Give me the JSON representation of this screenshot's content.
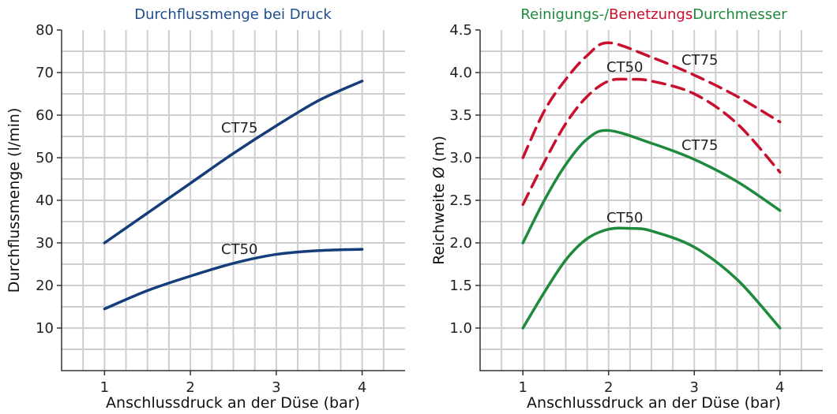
{
  "chart_data": [
    {
      "type": "line",
      "title": "Durchflussmenge bei Druck",
      "title_color": "#1f4e8c",
      "xlabel": "Anschlussdruck an der Düse (bar)",
      "ylabel": "Durchflussmenge (l/min)",
      "xlim": [
        0.5,
        4.5
      ],
      "ylim": [
        0,
        80
      ],
      "xticks": [
        1,
        2,
        3,
        4
      ],
      "yticks": [
        10,
        20,
        30,
        40,
        50,
        60,
        70,
        80
      ],
      "grid": true,
      "series": [
        {
          "name": "CT75",
          "color": "#143d7a",
          "dashed": false,
          "x": [
            1,
            1.5,
            2,
            2.5,
            3,
            3.5,
            4
          ],
          "y": [
            30,
            37,
            44,
            51,
            57.5,
            63.5,
            68
          ]
        },
        {
          "name": "CT50",
          "color": "#143d7a",
          "dashed": false,
          "x": [
            1,
            1.5,
            2,
            2.5,
            3,
            3.5,
            4
          ],
          "y": [
            14.5,
            18.8,
            22.2,
            25.2,
            27.3,
            28.2,
            28.5
          ]
        }
      ]
    },
    {
      "type": "line",
      "title_parts": [
        {
          "text": "Reinigungs-/",
          "color": "#1e8a3c"
        },
        {
          "text": "Benetzungs",
          "color": "#c8102e"
        },
        {
          "text": "Durchmesser",
          "color": "#1e8a3c"
        }
      ],
      "xlabel": "Anschlussdruck an der Düse (bar)",
      "ylabel": "Reichweite Ø (m)",
      "xlim": [
        0.5,
        4.5
      ],
      "ylim": [
        0.5,
        4.5
      ],
      "xticks": [
        1,
        2,
        3,
        4
      ],
      "yticks": [
        1.0,
        1.5,
        2.0,
        2.5,
        3.0,
        3.5,
        4.0,
        4.5
      ],
      "ytick_labels": [
        "1.0",
        "1.5",
        "2.0",
        "2.5",
        "3.0",
        "3.5",
        "4.0",
        "4.5"
      ],
      "grid": true,
      "series": [
        {
          "name": "CT75",
          "color": "#c8102e",
          "dashed": true,
          "x": [
            1,
            1.25,
            1.5,
            1.75,
            2,
            2.5,
            3,
            3.5,
            4
          ],
          "y": [
            3.0,
            3.55,
            3.92,
            4.2,
            4.35,
            4.18,
            3.97,
            3.72,
            3.42
          ]
        },
        {
          "name": "CT50",
          "color": "#c8102e",
          "dashed": true,
          "x": [
            1,
            1.25,
            1.5,
            1.75,
            2,
            2.25,
            2.5,
            3,
            3.5,
            4
          ],
          "y": [
            2.45,
            2.95,
            3.4,
            3.72,
            3.9,
            3.92,
            3.9,
            3.75,
            3.4,
            2.83
          ]
        },
        {
          "name": "CT75",
          "color": "#1e8a3c",
          "dashed": false,
          "x": [
            1,
            1.25,
            1.5,
            1.75,
            2,
            2.5,
            3,
            3.5,
            4
          ],
          "y": [
            2.0,
            2.5,
            2.92,
            3.22,
            3.32,
            3.17,
            2.98,
            2.72,
            2.38
          ]
        },
        {
          "name": "CT50",
          "color": "#1e8a3c",
          "dashed": false,
          "x": [
            1,
            1.25,
            1.5,
            1.75,
            2,
            2.25,
            2.5,
            3,
            3.5,
            4
          ],
          "y": [
            1.0,
            1.42,
            1.8,
            2.05,
            2.16,
            2.17,
            2.14,
            1.95,
            1.57,
            1.0
          ]
        }
      ]
    }
  ]
}
